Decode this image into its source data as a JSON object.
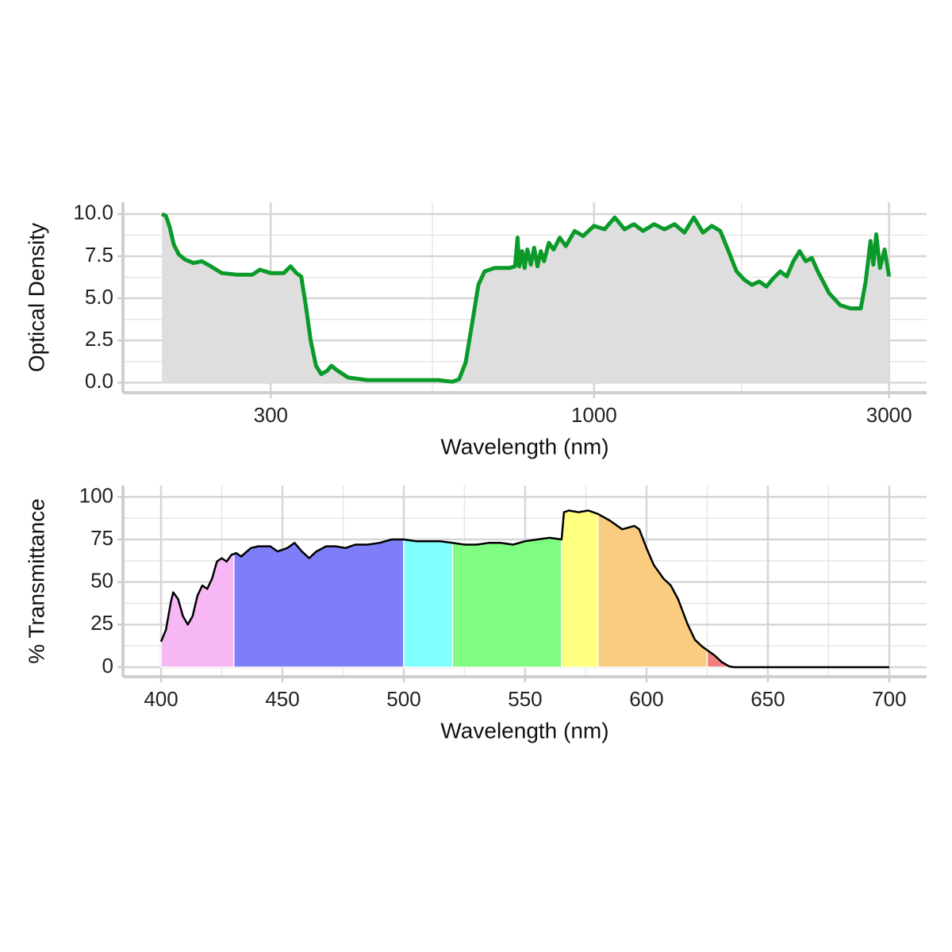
{
  "chart_data": [
    {
      "type": "line",
      "x_label": "Wavelength (nm)",
      "y_label": "Optical Density",
      "log_x": true,
      "xlim": [
        173,
        3450
      ],
      "xticks": [
        300,
        1000,
        3000
      ],
      "ylim": [
        -0.6,
        10.7
      ],
      "yticks": [
        {
          "value": 0,
          "label": "0.0"
        },
        2.5,
        {
          "value": 5,
          "label": "5.0"
        },
        {
          "value": 7.5,
          "label": "7.5"
        },
        {
          "value": 10,
          "label": "10.0"
        }
      ],
      "grid": true,
      "color": "#0a9a2a",
      "fill_color": "#dedede",
      "x": [
        200,
        203,
        206,
        209,
        213,
        218,
        225,
        232,
        240,
        250,
        265,
        280,
        288,
        300,
        315,
        323,
        330,
        336,
        342,
        348,
        355,
        362,
        370,
        376,
        385,
        400,
        430,
        500,
        560,
        590,
        605,
        620,
        635,
        650,
        665,
        690,
        730,
        745,
        752,
        757,
        765,
        772,
        780,
        790,
        800,
        810,
        820,
        830,
        845,
        860,
        880,
        900,
        930,
        960,
        1000,
        1040,
        1080,
        1120,
        1160,
        1200,
        1250,
        1300,
        1350,
        1400,
        1450,
        1500,
        1550,
        1600,
        1650,
        1700,
        1750,
        1800,
        1850,
        1900,
        1950,
        2000,
        2050,
        2100,
        2150,
        2200,
        2250,
        2300,
        2400,
        2500,
        2600,
        2700,
        2750,
        2800,
        2830,
        2860,
        2900,
        2950,
        3000
      ],
      "values": [
        10,
        9.9,
        9.2,
        8.2,
        7.6,
        7.3,
        7.1,
        7.2,
        6.9,
        6.5,
        6.4,
        6.4,
        6.7,
        6.5,
        6.5,
        6.9,
        6.5,
        6.3,
        4.5,
        2.5,
        1.0,
        0.5,
        0.7,
        1.0,
        0.7,
        0.3,
        0.15,
        0.15,
        0.15,
        0.05,
        0.2,
        1.2,
        3.5,
        5.8,
        6.6,
        6.8,
        6.8,
        6.9,
        8.6,
        6.9,
        7.8,
        6.8,
        7.9,
        7.0,
        8.0,
        6.9,
        7.8,
        7.2,
        8.3,
        7.9,
        8.6,
        8.1,
        9.0,
        8.7,
        9.3,
        9.1,
        9.8,
        9.1,
        9.4,
        9.0,
        9.4,
        9.1,
        9.4,
        8.9,
        9.8,
        8.9,
        9.3,
        9.0,
        7.8,
        6.6,
        6.1,
        5.8,
        6.0,
        5.7,
        6.2,
        6.6,
        6.3,
        7.2,
        7.8,
        7.2,
        7.4,
        6.6,
        5.3,
        4.6,
        4.4,
        4.4,
        6.0,
        8.4,
        7.0,
        8.8,
        6.8,
        7.9,
        6.3
      ]
    },
    {
      "type": "area",
      "x_label": "Wavelength (nm)",
      "y_label": "% Transmittance",
      "xlim": [
        384.3,
        715.4
      ],
      "xticks": [
        400,
        450,
        500,
        550,
        600,
        650,
        700
      ],
      "ylim": [
        -5.6,
        106.7
      ],
      "yticks": [
        0,
        25,
        50,
        75,
        100
      ],
      "grid": true,
      "color": "#000000",
      "bands": [
        {
          "start": 400,
          "end": 430,
          "color": "#f5b8f5"
        },
        {
          "start": 430,
          "end": 500,
          "color": "#7e7ef8"
        },
        {
          "start": 500,
          "end": 520,
          "color": "#80ffff"
        },
        {
          "start": 520,
          "end": 565,
          "color": "#80fc80"
        },
        {
          "start": 565,
          "end": 580,
          "color": "#ffff80"
        },
        {
          "start": 580,
          "end": 625,
          "color": "#f9cc80"
        },
        {
          "start": 625,
          "end": 635,
          "color": "#f08080"
        }
      ],
      "x": [
        400,
        402,
        404,
        405,
        407,
        409,
        411,
        413,
        415,
        417,
        419,
        421,
        423,
        425,
        427,
        429,
        431,
        433,
        437,
        440,
        445,
        448,
        452,
        455,
        458,
        461,
        464,
        468,
        472,
        476,
        480,
        485,
        490,
        495,
        500,
        505,
        510,
        515,
        520,
        525,
        530,
        535,
        540,
        545,
        550,
        555,
        560,
        565,
        566,
        568,
        572,
        576,
        580,
        585,
        590,
        595,
        597,
        600,
        603,
        607,
        610,
        613,
        617,
        620,
        623,
        625,
        628,
        631,
        634,
        636,
        650,
        700
      ],
      "values": [
        15,
        22,
        38,
        44,
        40,
        30,
        25,
        30,
        42,
        48,
        46,
        52,
        62,
        64,
        62,
        66,
        67,
        65,
        70,
        71,
        71,
        68,
        70,
        73,
        68,
        64,
        68,
        71,
        71,
        70,
        72,
        72,
        73,
        75,
        75,
        74,
        74,
        74,
        73,
        72,
        72,
        73,
        73,
        72,
        74,
        75,
        76,
        75,
        91,
        92,
        91,
        92,
        90,
        86,
        81,
        83,
        81,
        70,
        60,
        52,
        48,
        40,
        25,
        16,
        12,
        10,
        7,
        3,
        0.5,
        0,
        0,
        0
      ]
    }
  ]
}
